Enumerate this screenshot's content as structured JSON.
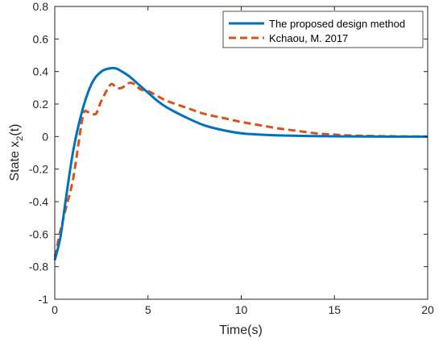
{
  "chart_data": {
    "type": "line",
    "xlabel": "Time(s)",
    "ylabel": {
      "text": "State x",
      "sub": "2",
      "suffix": "(t)"
    },
    "xlim": [
      0,
      20
    ],
    "ylim": [
      -1,
      0.8
    ],
    "xticks": [
      0,
      5,
      10,
      15,
      20
    ],
    "yticks": [
      -1,
      -0.8,
      -0.6,
      -0.4,
      -0.2,
      0,
      0.2,
      0.4,
      0.6,
      0.8
    ],
    "grid": false,
    "legend_position": "top-right",
    "series": [
      {
        "name": "The proposed design method",
        "color": "#0072BD",
        "style": "solid",
        "x": [
          0,
          0.3,
          0.6,
          1.0,
          1.5,
          2.0,
          2.5,
          3.0,
          3.3,
          3.6,
          4.0,
          4.5,
          5.0,
          5.5,
          6.0,
          7.0,
          8.0,
          9.0,
          10.0,
          11.0,
          12.0,
          14.0,
          16.0,
          18.0,
          20.0
        ],
        "y": [
          -0.76,
          -0.62,
          -0.38,
          -0.08,
          0.17,
          0.33,
          0.4,
          0.42,
          0.418,
          0.4,
          0.37,
          0.32,
          0.27,
          0.22,
          0.18,
          0.12,
          0.07,
          0.04,
          0.02,
          0.012,
          0.007,
          0.003,
          0.001,
          0.0,
          0.0
        ]
      },
      {
        "name": "Kchaou, M. 2017",
        "color": "#D95319",
        "style": "dashed",
        "x": [
          0,
          0.3,
          0.6,
          1.0,
          1.5,
          1.8,
          2.2,
          2.5,
          3.0,
          3.3,
          3.6,
          4.0,
          4.3,
          4.6,
          5.0,
          5.5,
          6.0,
          7.0,
          8.0,
          9.0,
          10.0,
          11.0,
          12.0,
          13.0,
          14.0,
          15.0,
          16.0,
          18.0,
          20.0
        ],
        "y": [
          -0.74,
          -0.58,
          -0.44,
          -0.25,
          0.12,
          0.15,
          0.14,
          0.22,
          0.32,
          0.3,
          0.3,
          0.33,
          0.32,
          0.29,
          0.28,
          0.25,
          0.22,
          0.18,
          0.14,
          0.115,
          0.09,
          0.07,
          0.05,
          0.035,
          0.02,
          0.012,
          0.006,
          0.002,
          0.0
        ]
      }
    ]
  }
}
